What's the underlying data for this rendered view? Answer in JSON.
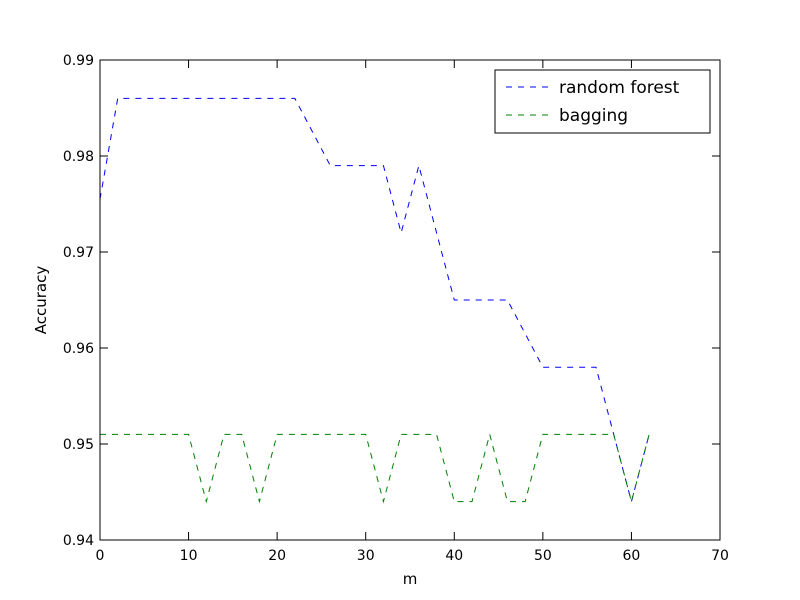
{
  "chart_data": {
    "type": "line",
    "xlabel": "m",
    "ylabel": "Accuracy",
    "xlim": [
      0,
      70
    ],
    "ylim": [
      0.94,
      0.99
    ],
    "x_ticks": [
      "0",
      "10",
      "20",
      "30",
      "40",
      "50",
      "60",
      "70"
    ],
    "y_ticks": [
      "0.94",
      "0.95",
      "0.96",
      "0.97",
      "0.98",
      "0.99"
    ],
    "grid": false,
    "legend_position": "top-right",
    "series": [
      {
        "name": "random forest",
        "color": "#0000ff",
        "x": [
          0,
          2,
          4,
          6,
          8,
          10,
          12,
          14,
          16,
          18,
          20,
          22,
          24,
          26,
          28,
          30,
          32,
          34,
          36,
          38,
          40,
          42,
          44,
          46,
          48,
          50,
          52,
          54,
          56,
          58,
          60,
          62
        ],
        "y": [
          0.9755,
          0.986,
          0.986,
          0.986,
          0.986,
          0.986,
          0.986,
          0.986,
          0.986,
          0.986,
          0.986,
          0.986,
          0.9825,
          0.979,
          0.979,
          0.979,
          0.979,
          0.972,
          0.979,
          0.972,
          0.965,
          0.965,
          0.965,
          0.965,
          0.9615,
          0.958,
          0.958,
          0.958,
          0.958,
          0.951,
          0.944,
          0.951
        ]
      },
      {
        "name": "bagging",
        "color": "#008000",
        "x": [
          0,
          2,
          4,
          6,
          8,
          10,
          12,
          14,
          16,
          18,
          20,
          22,
          24,
          26,
          28,
          30,
          32,
          34,
          36,
          38,
          40,
          42,
          44,
          46,
          48,
          50,
          52,
          54,
          56,
          58,
          60,
          62
        ],
        "y": [
          0.951,
          0.951,
          0.951,
          0.951,
          0.951,
          0.951,
          0.944,
          0.951,
          0.951,
          0.944,
          0.951,
          0.951,
          0.951,
          0.951,
          0.951,
          0.951,
          0.944,
          0.951,
          0.951,
          0.951,
          0.944,
          0.944,
          0.951,
          0.944,
          0.944,
          0.951,
          0.951,
          0.951,
          0.951,
          0.951,
          0.944,
          0.951
        ]
      }
    ]
  }
}
